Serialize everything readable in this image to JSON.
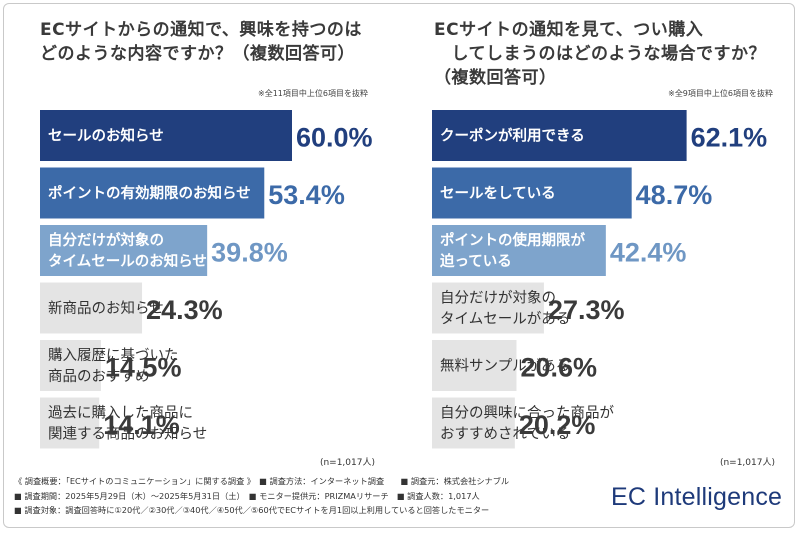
{
  "left": {
    "title": "ECサイトからの通知で、興味を持つのは\nどのような内容ですか？（複数回答可）",
    "note": "※全11項目中上位6項目を抜粋",
    "n_label": "(n=1,017人)"
  },
  "right": {
    "title": "ECサイトの通知を見て、つい購入\n　してしまうのはどのような場合ですか？\n（複数回答可）",
    "note": "※全9項目中上位6項目を抜粋",
    "n_label": "(n=1,017人)"
  },
  "chart_data": [
    {
      "type": "bar",
      "orientation": "horizontal",
      "categories": [
        "セールのお知らせ",
        "ポイントの有効期限のお知らせ",
        "自分だけが対象の\nタイムセールのお知らせ",
        "新商品のお知らせ",
        "購入履歴に基づいた\n商品のおすすめ",
        "過去に購入した商品に\n関連する商品のお知らせ"
      ],
      "values": [
        60.0,
        53.4,
        39.8,
        24.3,
        14.5,
        14.1
      ],
      "value_labels": [
        "60.0%",
        "53.4%",
        "39.8%",
        "24.3%",
        "14.5%",
        "14.1%"
      ],
      "colors": [
        "#213f7e",
        "#3c6aa8",
        "#7ea4cc",
        "#e4e4e4",
        "#e4e4e4",
        "#e4e4e4"
      ],
      "value_colors": [
        "#213f7e",
        "#3c6aa8",
        "#6f97c4",
        "#3a3a3a",
        "#3a3a3a",
        "#3a3a3a"
      ],
      "xlim": [
        0,
        100
      ]
    },
    {
      "type": "bar",
      "orientation": "horizontal",
      "categories": [
        "クーポンが利用できる",
        "セールをしている",
        "ポイントの使用期限が\n迫っている",
        "自分だけが対象の\nタイムセールがある",
        "無料サンプルがある",
        "自分の興味に合った商品が\nおすすめされている"
      ],
      "values": [
        62.1,
        48.7,
        42.4,
        27.3,
        20.6,
        20.2
      ],
      "value_labels": [
        "62.1%",
        "48.7%",
        "42.4%",
        "27.3%",
        "20.6%",
        "20.2%"
      ],
      "colors": [
        "#213f7e",
        "#3c6aa8",
        "#7ea4cc",
        "#e4e4e4",
        "#e4e4e4",
        "#e4e4e4"
      ],
      "value_colors": [
        "#213f7e",
        "#3c6aa8",
        "#6f97c4",
        "#3a3a3a",
        "#3a3a3a",
        "#3a3a3a"
      ],
      "xlim": [
        0,
        100
      ]
    }
  ],
  "footer": {
    "line1": "《 調査概要：「ECサイトのコミュニケーション」に関する調査 》　■ 調査方法：インターネット調査　　■ 調査元：株式会社シナブル",
    "line2": "■ 調査期間：2025年5月29日（木）〜2025年5月31日（土）　■ モニター提供元：PRIZMAリサーチ　■ 調査人数：1,017人",
    "line3": "■ 調査対象：調査回答時に①20代／②30代／③40代／④50代／⑤60代でECサイトを月1回以上利用していると回答したモニター"
  },
  "brand": "EC Intelligence"
}
